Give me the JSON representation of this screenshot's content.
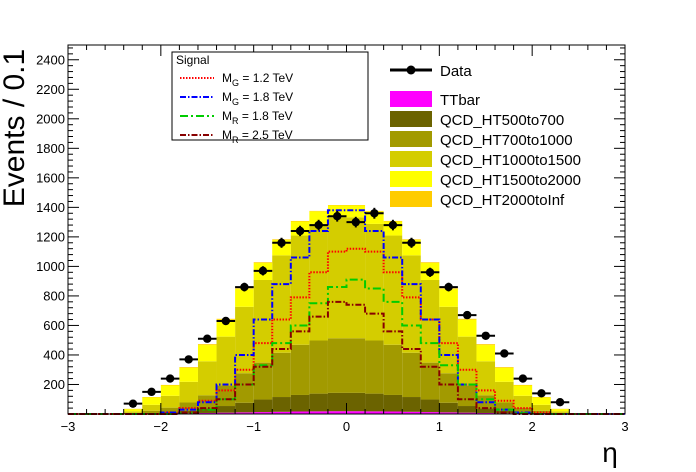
{
  "chart_data": {
    "type": "bar",
    "title": "",
    "xlabel": "η",
    "ylabel": "Events / 0.1",
    "xlim": [
      -3,
      3
    ],
    "ylim": [
      0,
      2500
    ],
    "x_ticks": [
      -3,
      -2,
      -1,
      0,
      1,
      2,
      3
    ],
    "y_ticks": [
      200,
      400,
      600,
      800,
      1000,
      1200,
      1400,
      1600,
      1800,
      2000,
      2200,
      2400
    ],
    "legend_position": "top-right",
    "bin_edges": [
      -3.0,
      -2.8,
      -2.6,
      -2.4,
      -2.2,
      -2.0,
      -1.8,
      -1.6,
      -1.4,
      -1.2,
      -1.0,
      -0.8,
      -0.6,
      -0.4,
      -0.2,
      0.0,
      0.2,
      0.4,
      0.6,
      0.8,
      1.0,
      1.2,
      1.4,
      1.6,
      1.8,
      2.0,
      2.2,
      2.4,
      2.6,
      2.8,
      3.0
    ],
    "stacked_series": [
      {
        "name": "TTbar",
        "color": "#ff00ff",
        "values": [
          0,
          0,
          0,
          1,
          2,
          3,
          5,
          7,
          9,
          11,
          13,
          15,
          17,
          18,
          19,
          19,
          18,
          17,
          15,
          13,
          11,
          9,
          7,
          5,
          3,
          2,
          1,
          0,
          0,
          0
        ]
      },
      {
        "name": "QCD_HT500to700",
        "color": "#6b6300",
        "values": [
          0,
          0,
          0,
          2,
          5,
          10,
          18,
          30,
          45,
          65,
          85,
          100,
          112,
          120,
          124,
          124,
          120,
          112,
          100,
          85,
          65,
          45,
          30,
          18,
          10,
          5,
          2,
          0,
          0,
          0
        ]
      },
      {
        "name": "QCD_HT700to1000",
        "color": "#a29a00",
        "values": [
          0,
          0,
          0,
          5,
          15,
          30,
          55,
          90,
          140,
          200,
          250,
          300,
          340,
          360,
          370,
          370,
          360,
          340,
          300,
          250,
          200,
          140,
          90,
          55,
          30,
          15,
          5,
          0,
          0,
          0
        ]
      },
      {
        "name": "QCD_HT1000to1500",
        "color": "#d4cd00",
        "values": [
          0,
          0,
          0,
          10,
          40,
          80,
          140,
          230,
          330,
          450,
          560,
          660,
          740,
          790,
          820,
          820,
          790,
          740,
          660,
          560,
          450,
          330,
          230,
          140,
          80,
          40,
          10,
          0,
          0,
          0
        ]
      },
      {
        "name": "QCD_HT1500to2000",
        "color": "#ffff00",
        "values": [
          0,
          0,
          0,
          15,
          50,
          70,
          95,
          110,
          115,
          120,
          115,
          105,
          95,
          85,
          80,
          80,
          85,
          95,
          105,
          115,
          120,
          115,
          110,
          95,
          70,
          50,
          15,
          0,
          0,
          0
        ]
      },
      {
        "name": "QCD_HT2000toInf",
        "color": "#ffcc00",
        "values": [
          0,
          0,
          0,
          2,
          3,
          4,
          5,
          6,
          6,
          5,
          5,
          4,
          4,
          3,
          3,
          3,
          3,
          4,
          4,
          5,
          5,
          6,
          6,
          5,
          4,
          3,
          2,
          0,
          0,
          0
        ]
      }
    ],
    "data_series": {
      "name": "Data",
      "x": [
        -2.3,
        -2.1,
        -1.9,
        -1.7,
        -1.5,
        -1.3,
        -1.1,
        -0.9,
        -0.7,
        -0.5,
        -0.3,
        -0.1,
        0.1,
        0.3,
        0.5,
        0.7,
        0.9,
        1.1,
        1.3,
        1.5,
        1.7,
        1.9,
        2.1,
        2.3
      ],
      "y": [
        70,
        150,
        240,
        370,
        510,
        630,
        860,
        970,
        1160,
        1240,
        1280,
        1340,
        1300,
        1360,
        1280,
        1160,
        960,
        860,
        670,
        530,
        410,
        240,
        140,
        80
      ]
    },
    "signal_legend_title": "Signal",
    "signal_series": [
      {
        "label_main": "M",
        "label_sub": "G",
        "label_rest": " = 1.2 TeV",
        "color": "#ff0000",
        "dash": "1.5,1.5",
        "values": [
          0,
          0,
          0,
          0,
          0,
          10,
          40,
          90,
          160,
          300,
          480,
          640,
          790,
          960,
          1100,
          1120,
          1100,
          960,
          790,
          640,
          480,
          300,
          160,
          90,
          40,
          10,
          0,
          0,
          0,
          0
        ]
      },
      {
        "label_main": "M",
        "label_sub": "G",
        "label_rest": " = 1.8 TeV",
        "color": "#0000ff",
        "dash": "6,2,1.5,2",
        "values": [
          0,
          0,
          0,
          0,
          0,
          10,
          30,
          80,
          200,
          400,
          640,
          880,
          1060,
          1240,
          1380,
          1380,
          1240,
          1060,
          880,
          640,
          400,
          200,
          80,
          30,
          10,
          0,
          0,
          0,
          0,
          0
        ]
      },
      {
        "label_main": "M",
        "label_sub": "R",
        "label_rest": " = 1.8 TeV",
        "color": "#00cc00",
        "dash": "8,3,2,3",
        "values": [
          0,
          0,
          0,
          0,
          0,
          0,
          5,
          30,
          100,
          200,
          330,
          480,
          600,
          750,
          860,
          910,
          850,
          760,
          600,
          480,
          330,
          200,
          100,
          30,
          5,
          0,
          0,
          0,
          0,
          0
        ]
      },
      {
        "label_main": "M",
        "label_sub": "R",
        "label_rest": " = 2.5 TeV",
        "color": "#880000",
        "dash": "6,2,1.5,2",
        "values": [
          0,
          0,
          0,
          0,
          0,
          0,
          10,
          40,
          100,
          200,
          320,
          440,
          560,
          660,
          760,
          740,
          680,
          560,
          440,
          320,
          200,
          100,
          40,
          10,
          0,
          0,
          0,
          0,
          0,
          0
        ]
      }
    ]
  }
}
